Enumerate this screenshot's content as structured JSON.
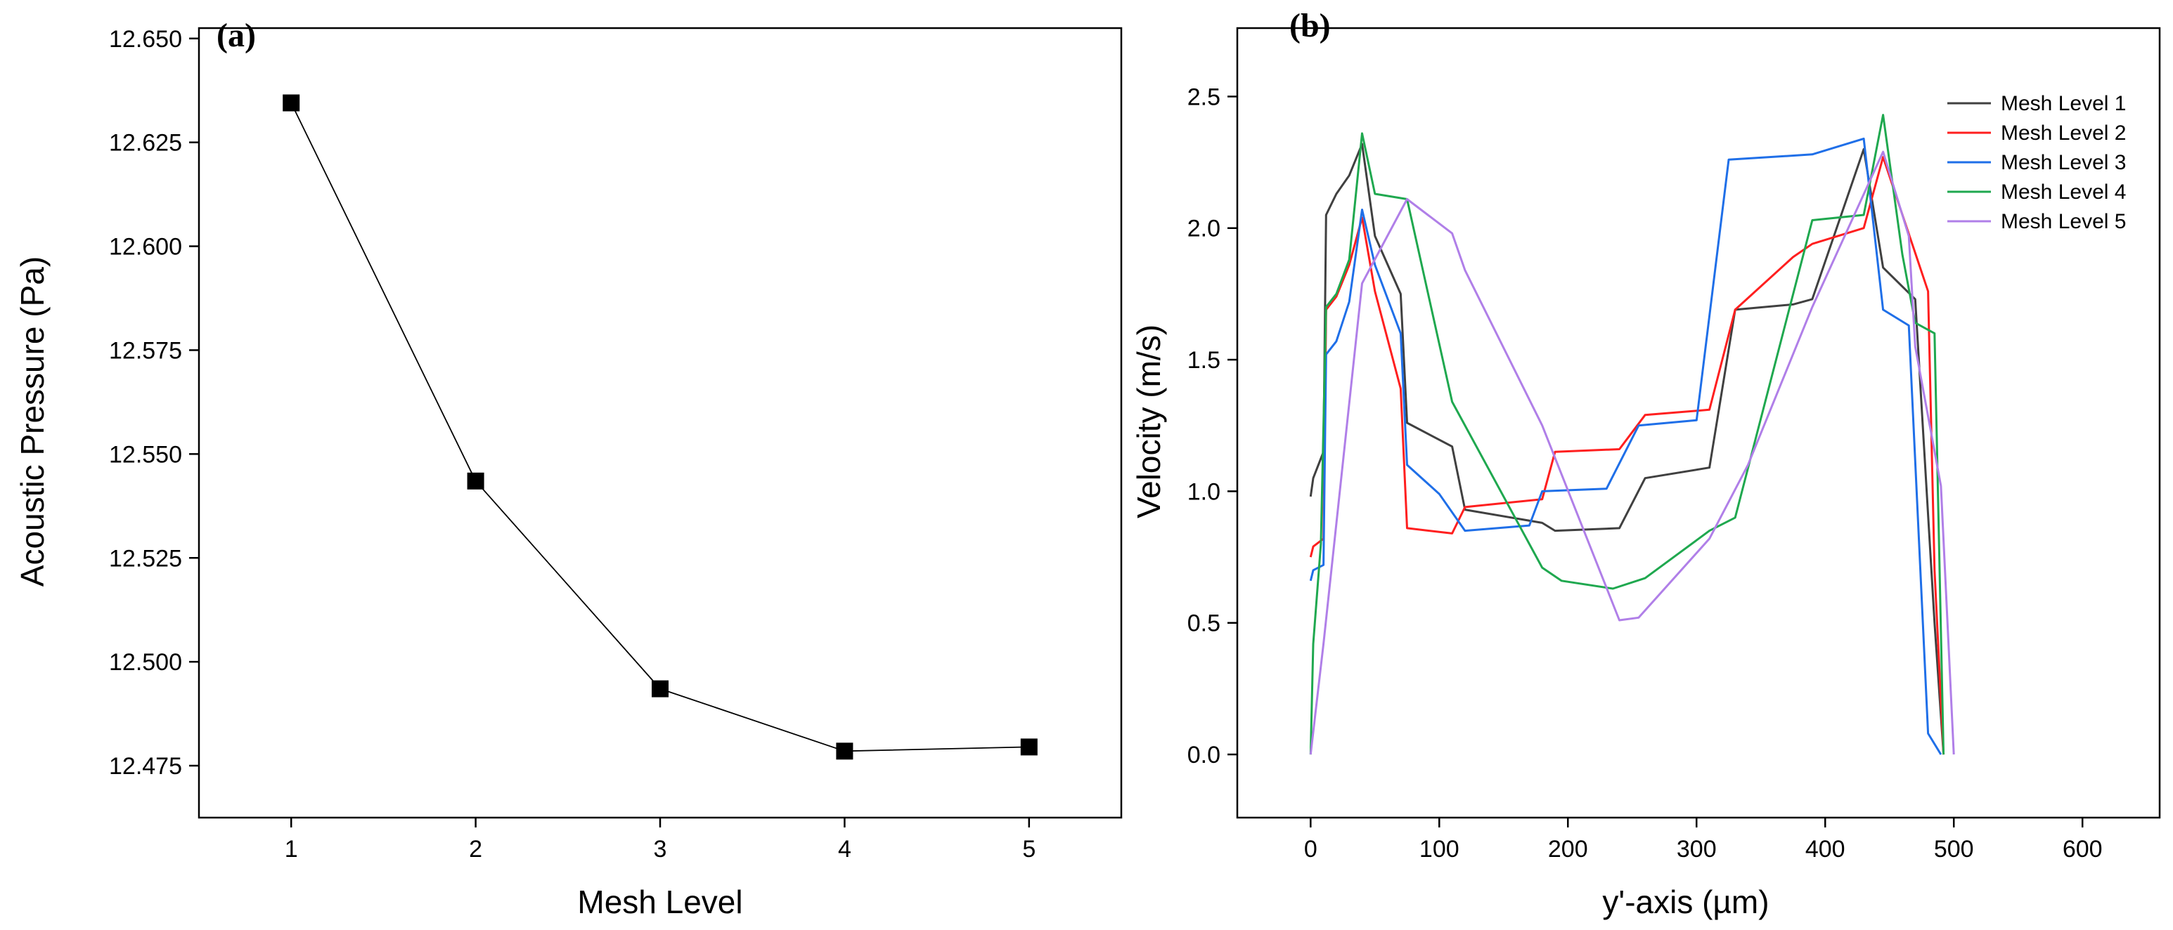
{
  "chart_data": [
    {
      "panel": "(a)",
      "type": "line",
      "xlabel": "Mesh Level",
      "ylabel": "Acoustic Pressure (Pa)",
      "xticks": [
        "1",
        "2",
        "3",
        "4",
        "5"
      ],
      "yticks": [
        "12.475",
        "12.500",
        "12.525",
        "12.550",
        "12.575",
        "12.600",
        "12.625",
        "12.650"
      ],
      "xlim": [
        0.5,
        5.5
      ],
      "ylim": [
        12.4625,
        12.6525
      ],
      "series": [
        {
          "x": [
            1,
            2,
            3,
            4,
            5
          ],
          "y": [
            12.6345,
            12.5435,
            12.4935,
            12.4785,
            12.4795
          ],
          "color": "#000000",
          "marker": "square"
        }
      ]
    },
    {
      "panel": "(b)",
      "type": "line",
      "xlabel": "y'-axis (µm)",
      "ylabel": "Velocity (m/s)",
      "xticks": [
        "0",
        "100",
        "200",
        "300",
        "400",
        "500",
        "600"
      ],
      "yticks": [
        "0.0",
        "0.5",
        "1.0",
        "1.5",
        "2.0",
        "2.5"
      ],
      "xlim": [
        -57,
        660
      ],
      "ylim": [
        -0.24,
        2.76
      ],
      "legend": "top-right",
      "series": [
        {
          "name": "Mesh Level 1",
          "color": "#404040",
          "x": [
            0,
            2,
            10,
            12,
            20,
            30,
            40,
            50,
            70,
            75,
            110,
            120,
            180,
            190,
            240,
            260,
            310,
            330,
            375,
            390,
            430,
            445,
            470,
            485,
            492
          ],
          "y": [
            0.98,
            1.05,
            1.15,
            2.05,
            2.13,
            2.2,
            2.32,
            1.97,
            1.75,
            1.26,
            1.17,
            0.93,
            0.88,
            0.85,
            0.86,
            1.05,
            1.09,
            1.69,
            1.71,
            1.73,
            2.3,
            1.85,
            1.73,
            0.5,
            0.0
          ]
        },
        {
          "name": "Mesh Level 2",
          "color": "#ff1f1f",
          "x": [
            0,
            2,
            10,
            12,
            20,
            30,
            40,
            50,
            70,
            75,
            110,
            120,
            180,
            190,
            240,
            260,
            310,
            330,
            375,
            390,
            430,
            445,
            480,
            485,
            492
          ],
          "y": [
            0.75,
            0.79,
            0.82,
            1.69,
            1.74,
            1.86,
            2.04,
            1.76,
            1.39,
            0.86,
            0.84,
            0.94,
            0.97,
            1.15,
            1.16,
            1.29,
            1.31,
            1.69,
            1.89,
            1.94,
            2.0,
            2.27,
            1.76,
            0.7,
            0.0
          ]
        },
        {
          "name": "Mesh Level 3",
          "color": "#1f6fe8",
          "x": [
            0,
            2,
            10,
            12,
            20,
            30,
            40,
            50,
            70,
            75,
            100,
            120,
            170,
            180,
            230,
            255,
            300,
            325,
            390,
            430,
            445,
            465,
            480,
            490
          ],
          "y": [
            0.66,
            0.7,
            0.72,
            1.52,
            1.57,
            1.72,
            2.07,
            1.86,
            1.6,
            1.1,
            0.99,
            0.85,
            0.87,
            1.0,
            1.01,
            1.25,
            1.27,
            2.26,
            2.28,
            2.34,
            1.69,
            1.63,
            0.08,
            0.0
          ]
        },
        {
          "name": "Mesh Level 4",
          "color": "#1fa84f",
          "x": [
            0,
            2,
            8,
            12,
            20,
            30,
            40,
            50,
            75,
            110,
            180,
            195,
            235,
            260,
            310,
            330,
            390,
            430,
            445,
            460,
            470,
            485,
            492
          ],
          "y": [
            0.0,
            0.42,
            0.8,
            1.7,
            1.75,
            1.88,
            2.36,
            2.13,
            2.11,
            1.34,
            0.71,
            0.66,
            0.63,
            0.67,
            0.85,
            0.9,
            2.03,
            2.05,
            2.43,
            1.9,
            1.64,
            1.6,
            0.0
          ]
        },
        {
          "name": "Mesh Level 5",
          "color": "#b07fe8",
          "x": [
            0,
            10,
            40,
            75,
            110,
            120,
            180,
            240,
            255,
            310,
            340,
            390,
            445,
            465,
            470,
            490,
            500
          ],
          "y": [
            0.0,
            0.42,
            1.79,
            2.11,
            1.98,
            1.84,
            1.25,
            0.51,
            0.52,
            0.82,
            1.1,
            1.7,
            2.29,
            1.97,
            1.55,
            1.02,
            0.0
          ]
        }
      ]
    }
  ]
}
